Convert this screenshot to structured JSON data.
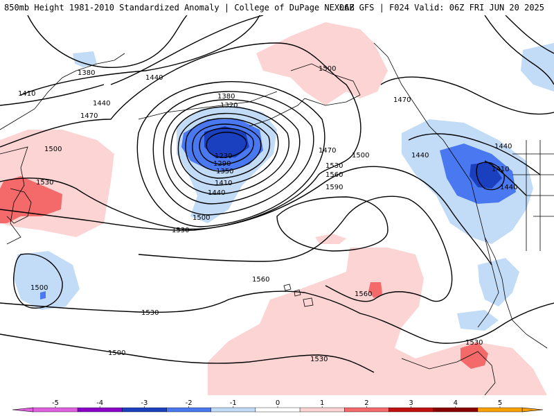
{
  "header": {
    "title": "850mb Height 1981-2010 Standardized Anomaly | College of DuPage NEXLAB",
    "run_info": "06Z GFS | F024 Valid: 06Z FRI JUN 20 2025"
  },
  "colors": {
    "neg5": "#e060e0",
    "neg4": "#8a00c8",
    "neg3": "#1a3fbf",
    "neg2": "#4a78f0",
    "neg1": "#c2dcf8",
    "neutral": "#ffffff",
    "pos1": "#fcd4d4",
    "pos2": "#f46a6a",
    "pos3": "#c01010",
    "pos4": "#8a0000",
    "pos5": "#f8a000",
    "contour": "#000000",
    "coastline": "#000000"
  },
  "contour_labels": [
    {
      "text": "1380"
    },
    {
      "text": "1410"
    },
    {
      "text": "1440"
    },
    {
      "text": "1470"
    },
    {
      "text": "1440"
    },
    {
      "text": "1500"
    },
    {
      "text": "1530"
    },
    {
      "text": "1380"
    },
    {
      "text": "1320"
    },
    {
      "text": "1230"
    },
    {
      "text": "1290"
    },
    {
      "text": "1350"
    },
    {
      "text": "1410"
    },
    {
      "text": "1440"
    },
    {
      "text": "1500"
    },
    {
      "text": "1530"
    },
    {
      "text": "1470"
    },
    {
      "text": "1500"
    },
    {
      "text": "1530"
    },
    {
      "text": "1560"
    },
    {
      "text": "1590"
    },
    {
      "text": "1500"
    },
    {
      "text": "1470"
    },
    {
      "text": "1440"
    },
    {
      "text": "1440"
    },
    {
      "text": "1410"
    },
    {
      "text": "1440"
    },
    {
      "text": "1500"
    },
    {
      "text": "1560"
    },
    {
      "text": "1560"
    },
    {
      "text": "1530"
    },
    {
      "text": "1500"
    },
    {
      "text": "1530"
    },
    {
      "text": "1530"
    }
  ],
  "colorbar": {
    "ticks": [
      "-5",
      "-4",
      "-3",
      "-2",
      "-1",
      "0",
      "1",
      "2",
      "3",
      "4",
      "5"
    ]
  }
}
